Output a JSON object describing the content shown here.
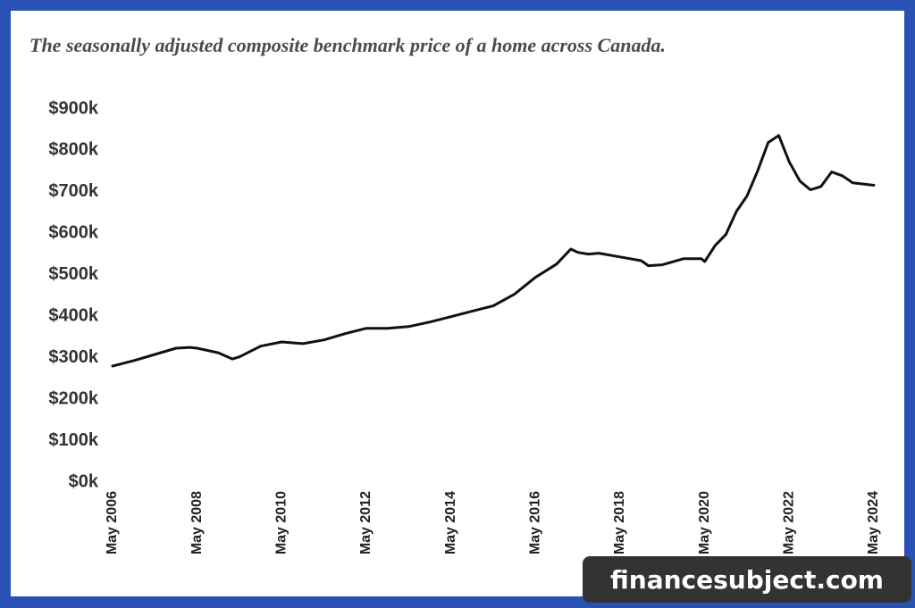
{
  "chart_data": {
    "type": "line",
    "title": "The seasonally adjusted composite benchmark price of a home across Canada.",
    "x": [
      "2006-05",
      "2006-11",
      "2007-05",
      "2007-11",
      "2008-03",
      "2008-05",
      "2008-11",
      "2009-03",
      "2009-05",
      "2009-11",
      "2010-05",
      "2010-11",
      "2011-05",
      "2011-11",
      "2012-05",
      "2012-11",
      "2013-05",
      "2013-11",
      "2014-05",
      "2014-11",
      "2015-05",
      "2015-11",
      "2016-05",
      "2016-11",
      "2017-03",
      "2017-05",
      "2017-08",
      "2017-11",
      "2018-05",
      "2018-11",
      "2019-01",
      "2019-05",
      "2019-11",
      "2020-04",
      "2020-05",
      "2020-08",
      "2020-11",
      "2021-02",
      "2021-05",
      "2021-08",
      "2021-11",
      "2022-02",
      "2022-05",
      "2022-08",
      "2022-11",
      "2023-02",
      "2023-05",
      "2023-08",
      "2023-11",
      "2024-05"
    ],
    "values": [
      280000,
      293000,
      308000,
      323000,
      325000,
      323000,
      312000,
      297000,
      302000,
      328000,
      338000,
      334000,
      343000,
      358000,
      371000,
      371000,
      375000,
      386000,
      399000,
      412000,
      425000,
      453000,
      494000,
      526000,
      562000,
      554000,
      550000,
      552000,
      543000,
      534000,
      522000,
      524000,
      539000,
      539000,
      532000,
      571000,
      597000,
      653000,
      690000,
      750000,
      819000,
      836000,
      772000,
      726000,
      705000,
      713000,
      748000,
      739000,
      722000,
      716000
    ],
    "color": "#111111",
    "xlim": [
      "2006-05",
      "2024-05"
    ],
    "xticks": [
      {
        "value": "2006-05",
        "label": "May 2006"
      },
      {
        "value": "2008-05",
        "label": "May 2008"
      },
      {
        "value": "2010-05",
        "label": "May 2010"
      },
      {
        "value": "2012-05",
        "label": "May 2012"
      },
      {
        "value": "2014-05",
        "label": "May 2014"
      },
      {
        "value": "2016-05",
        "label": "May 2016"
      },
      {
        "value": "2018-05",
        "label": "May 2018"
      },
      {
        "value": "2020-05",
        "label": "May 2020"
      },
      {
        "value": "2022-05",
        "label": "May 2022"
      },
      {
        "value": "2024-05",
        "label": "May 2024"
      }
    ],
    "ylim": [
      0,
      900000
    ],
    "yticks": [
      {
        "value": 0,
        "label": "$0k"
      },
      {
        "value": 100000,
        "label": "$100k"
      },
      {
        "value": 200000,
        "label": "$200k"
      },
      {
        "value": 300000,
        "label": "$300k"
      },
      {
        "value": 400000,
        "label": "$400k"
      },
      {
        "value": 500000,
        "label": "$500k"
      },
      {
        "value": 600000,
        "label": "$600k"
      },
      {
        "value": 700000,
        "label": "$700k"
      },
      {
        "value": 800000,
        "label": "$800k"
      },
      {
        "value": 900000,
        "label": "$900k"
      }
    ],
    "grid": false
  },
  "watermark": "financesubject.com"
}
